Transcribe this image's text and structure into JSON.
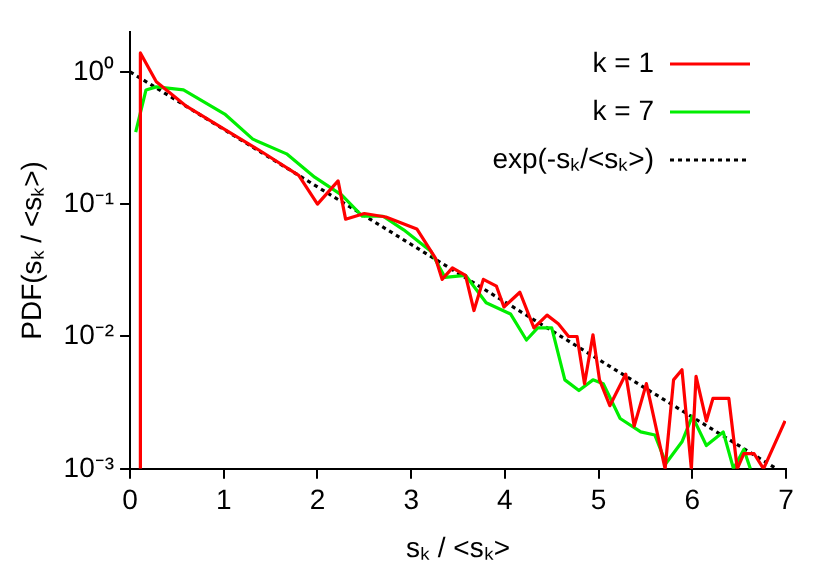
{
  "chart_data": {
    "type": "line",
    "xlabel": "sₖ / <sₖ>",
    "ylabel": "PDF(sₖ / <sₖ>)",
    "log": "y",
    "xlim": [
      0,
      7
    ],
    "xticks": [
      0,
      1,
      2,
      3,
      4,
      5,
      6,
      7
    ],
    "ylim": [
      0.001,
      2
    ],
    "yticks": [
      {
        "value": 0.001,
        "label": "10⁻³"
      },
      {
        "value": 0.01,
        "label": "10⁻²"
      },
      {
        "value": 0.1,
        "label": "10⁻¹"
      },
      {
        "value": 1,
        "label": "10⁰"
      }
    ],
    "legend": "top right",
    "grid": false,
    "marker": "none",
    "series": [
      {
        "name": "k = 1",
        "color": "#ff0000",
        "x": [
          0.11,
          0.11,
          0.28,
          0.6,
          1.0,
          1.4,
          1.8,
          2.0,
          2.22,
          2.3,
          2.5,
          2.73,
          3.06,
          3.26,
          3.33,
          3.44,
          3.58,
          3.67,
          3.77,
          3.91,
          3.99,
          4.16,
          4.31,
          4.45,
          4.57,
          4.68,
          4.77,
          4.85,
          4.94,
          5.01,
          5.12,
          5.29,
          5.38,
          5.51,
          5.71,
          5.8,
          5.89,
          5.99,
          6.04,
          6.15,
          6.22,
          6.39,
          6.48,
          6.55,
          6.66,
          6.76,
          6.99
        ],
        "values": [
          0.001,
          1.39,
          0.84,
          0.55,
          0.37,
          0.25,
          0.165,
          0.1,
          0.15,
          0.077,
          0.085,
          0.08,
          0.065,
          0.039,
          0.027,
          0.033,
          0.029,
          0.0157,
          0.027,
          0.024,
          0.0167,
          0.0216,
          0.0116,
          0.0145,
          0.0125,
          0.01,
          0.01,
          0.0044,
          0.0103,
          0.0047,
          0.003,
          0.0052,
          0.0021,
          0.0044,
          0.001,
          0.0047,
          0.0056,
          0.001,
          0.005,
          0.0023,
          0.0034,
          0.0034,
          0.001,
          0.0013,
          0.0013,
          0.001,
          0.0023
        ]
      },
      {
        "name": "k = 7",
        "color": "#00ee00",
        "x": [
          0.06,
          0.17,
          0.28,
          0.57,
          1.01,
          1.31,
          1.67,
          1.97,
          2.26,
          2.48,
          2.7,
          2.92,
          3.21,
          3.36,
          3.58,
          3.8,
          4.06,
          4.23,
          4.35,
          4.5,
          4.64,
          4.79,
          4.94,
          5.05,
          5.23,
          5.45,
          5.6,
          5.72,
          5.89,
          6.0,
          6.15,
          6.33,
          6.44,
          6.55,
          6.62
        ],
        "values": [
          0.35,
          0.73,
          0.77,
          0.73,
          0.48,
          0.31,
          0.24,
          0.16,
          0.117,
          0.081,
          0.081,
          0.064,
          0.044,
          0.028,
          0.029,
          0.018,
          0.0148,
          0.0094,
          0.0116,
          0.0116,
          0.0047,
          0.0039,
          0.0047,
          0.0044,
          0.0024,
          0.0019,
          0.0018,
          0.0011,
          0.0016,
          0.0025,
          0.0015,
          0.0019,
          0.001,
          0.0014,
          0.001
        ]
      },
      {
        "name": "exp(-sₖ/<sₖ>)",
        "color": "#000000",
        "line_style": "dotted",
        "x": [
          0,
          6.9
        ],
        "values": [
          1,
          0.001
        ]
      }
    ]
  }
}
